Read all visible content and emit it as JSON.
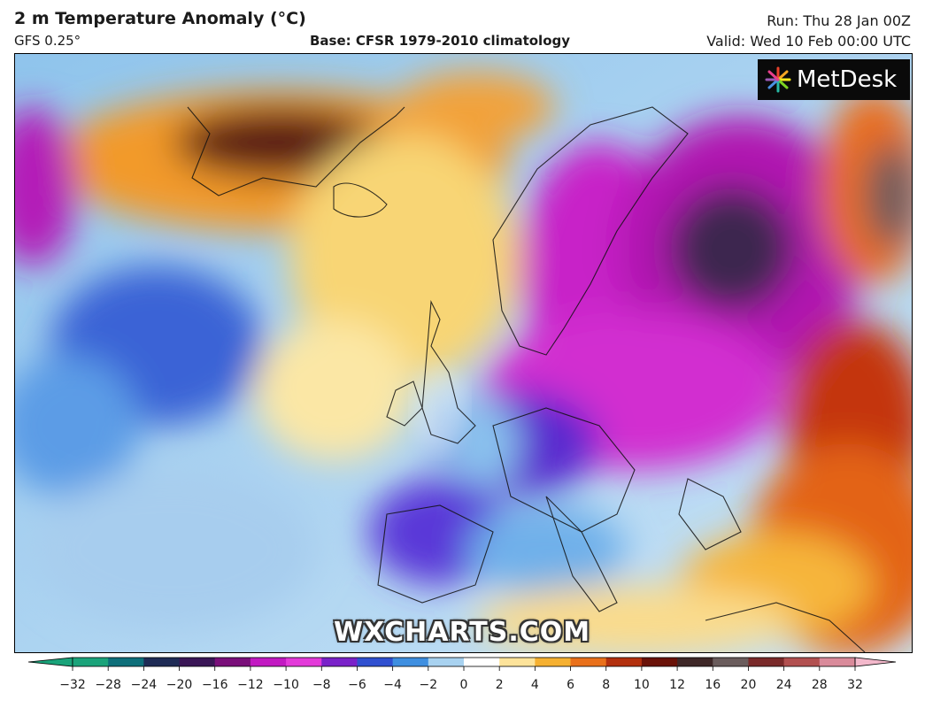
{
  "header": {
    "title": "2 m Temperature Anomaly (°C)",
    "model": "GFS 0.25°",
    "base": "Base: CFSR 1979-2010 climatology",
    "run": "Run: Thu 28 Jan 00Z",
    "valid": "Valid: Wed 10 Feb 00:00 UTC"
  },
  "logo": {
    "text": "MetDesk",
    "icon": "metdesk-starburst-icon"
  },
  "watermark": "WXCHARTS.COM",
  "colorbar": {
    "ticks": [
      "−32",
      "−28",
      "−24",
      "−20",
      "−16",
      "−12",
      "−10",
      "−8",
      "−6",
      "−4",
      "−2",
      "0",
      "2",
      "4",
      "6",
      "8",
      "10",
      "12",
      "16",
      "20",
      "24",
      "28",
      "32"
    ],
    "colors": [
      "#1aa37a",
      "#0e6f7a",
      "#1f2b55",
      "#3a1656",
      "#7a0f7a",
      "#c219c2",
      "#e33ad9",
      "#7a22c9",
      "#3050d0",
      "#3f8fe0",
      "#a8d2f0",
      "#ffffff",
      "#fde39a",
      "#f5b031",
      "#e9701a",
      "#b3300e",
      "#6a1208",
      "#3e2727",
      "#6a5c5c",
      "#7a2a2a",
      "#b25050",
      "#d98a9a",
      "#f3b8cb"
    ]
  }
}
